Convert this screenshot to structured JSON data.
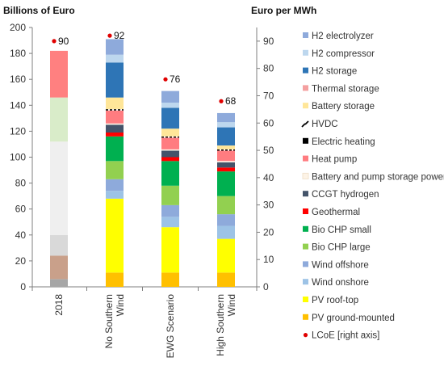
{
  "chart_data": {
    "type": "bar",
    "subtype": "stacked",
    "ylabel_left": "Billions of Euro",
    "ylabel_right": "Euro per MWh",
    "ylim_left": [
      0,
      200
    ],
    "yticks_left": [
      0,
      20,
      40,
      60,
      80,
      100,
      120,
      140,
      160,
      180,
      200
    ],
    "ylim_right": [
      0,
      95
    ],
    "yticks_right": [
      0,
      10,
      20,
      30,
      40,
      50,
      60,
      70,
      80,
      90
    ],
    "grid": false,
    "legend_position": "right",
    "categories": [
      "2018",
      "No Southern Wind",
      "EWG Scenario",
      "High Southern Wind"
    ],
    "category_labels": [
      [
        "2018"
      ],
      [
        "No Southern",
        "Wind"
      ],
      [
        "EWG Scenario"
      ],
      [
        "High Southern",
        "Wind"
      ]
    ],
    "series": [
      {
        "name": "PV ground-mounted",
        "color": "#ffc000",
        "values": [
          0,
          11,
          11,
          11
        ]
      },
      {
        "name": "PV roof-top",
        "color": "#ffff00",
        "values": [
          0,
          57,
          35,
          26
        ]
      },
      {
        "name": "Wind onshore",
        "color": "#9dc3e6",
        "values": [
          0,
          6,
          8,
          10
        ]
      },
      {
        "name": "Wind offshore",
        "color": "#8eaadb",
        "values": [
          0,
          9,
          9,
          9
        ]
      },
      {
        "name": "Bio CHP large",
        "color": "#92d050",
        "values": [
          0,
          14,
          15,
          14
        ]
      },
      {
        "name": "Bio CHP small",
        "color": "#00b050",
        "values": [
          0,
          19,
          19,
          19
        ]
      },
      {
        "name": "Geothermal",
        "color": "#ff0000",
        "values": [
          0,
          3,
          3,
          3
        ]
      },
      {
        "name": "CCGT hydrogen",
        "color": "#44546a",
        "values": [
          0,
          6,
          5,
          4
        ]
      },
      {
        "name": "Battery and pump storage power",
        "color": "#fdf3e6",
        "values": [
          0,
          1,
          1,
          1
        ]
      },
      {
        "name": "Heat pump",
        "color": "#ff7c80",
        "values": [
          0,
          10,
          9,
          8
        ]
      },
      {
        "name": "Electric heating",
        "color": "#000000",
        "values": [
          0,
          0,
          0,
          0
        ]
      },
      {
        "name": "HVDC",
        "color": "#000000",
        "values": [
          0,
          1,
          1,
          1
        ]
      },
      {
        "name": "Battery storage",
        "color": "#ffe699",
        "values": [
          0,
          9,
          6,
          3
        ]
      },
      {
        "name": "Thermal storage",
        "color": "#f4a0a0",
        "values": [
          0,
          0,
          0,
          0
        ]
      },
      {
        "name": "H2 storage",
        "color": "#2e75b6",
        "values": [
          0,
          27,
          16,
          14
        ]
      },
      {
        "name": "H2 compressor",
        "color": "#bdd7ee",
        "values": [
          0,
          6,
          4,
          4
        ]
      },
      {
        "name": "H2 electrolyzer",
        "color": "#8eaadb",
        "values": [
          0,
          12,
          9,
          7
        ]
      }
    ],
    "baseline_2018": [
      {
        "color": "#a6a6a6",
        "value": 6
      },
      {
        "color": "#c9a08a",
        "value": 18
      },
      {
        "color": "#d9d9d9",
        "value": 16
      },
      {
        "color": "#efefef",
        "value": 72
      },
      {
        "color": "#d9ecc9",
        "value": 34
      },
      {
        "color": "#ff8080",
        "value": 36
      }
    ],
    "lcoe": {
      "name": "LCoE [right axis]",
      "color": "#e00000",
      "axis": "right",
      "values": [
        90,
        92,
        76,
        68
      ],
      "labels": [
        "90",
        "92",
        "76",
        "68"
      ]
    }
  }
}
